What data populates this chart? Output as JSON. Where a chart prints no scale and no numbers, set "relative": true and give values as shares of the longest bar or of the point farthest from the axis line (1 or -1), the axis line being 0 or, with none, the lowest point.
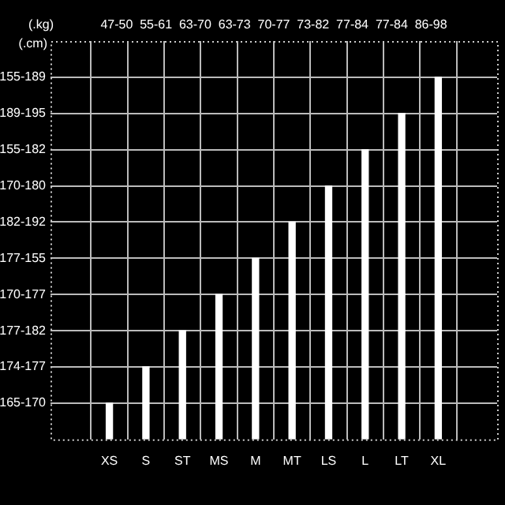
{
  "chart_data": {
    "type": "bar",
    "relative": true,
    "ylabel": "(.cm)",
    "x2label": "(.kg)",
    "categories": [
      "XS",
      "S",
      "ST",
      "MS",
      "M",
      "MT",
      "LS",
      "L",
      "LT",
      "XL"
    ],
    "values": [
      0.1,
      0.2,
      0.3,
      0.4,
      0.5,
      0.6,
      0.7,
      0.8,
      0.9,
      1
    ],
    "color": "#ffffff",
    "annotations": [
      "47-50",
      "55-61",
      "63-70",
      "63-73",
      "70-77",
      "73-82",
      "77-84",
      "77-84",
      "86-98",
      "155-189",
      "189-195",
      "155-182",
      "170-180",
      "182-192",
      "177-155",
      "170-177",
      "177-182",
      "174-177",
      "165-170"
    ],
    "grid": true,
    "legend": false
  }
}
